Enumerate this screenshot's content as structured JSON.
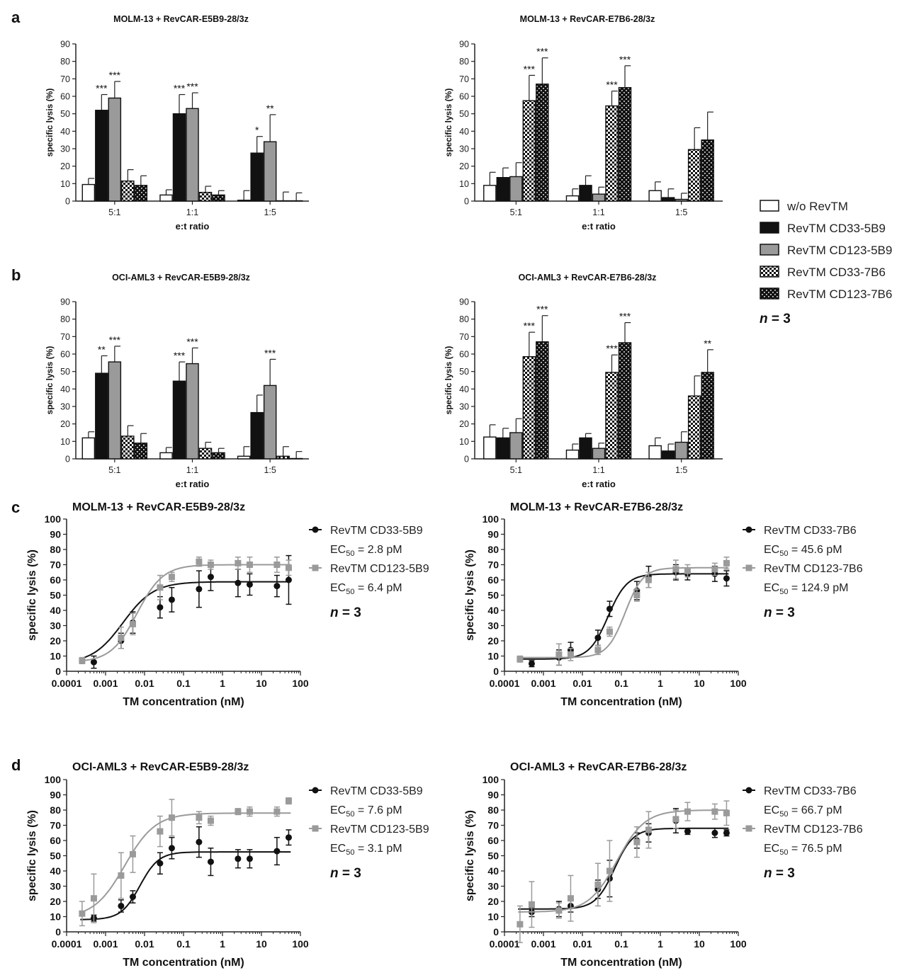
{
  "panel_letters": [
    "a",
    "b",
    "c",
    "d"
  ],
  "legend": {
    "entries": [
      {
        "label": "w/o RevTM",
        "pattern": "white"
      },
      {
        "label": "RevTM CD33-5B9",
        "pattern": "black"
      },
      {
        "label": "RevTM CD123-5B9",
        "pattern": "gray"
      },
      {
        "label": "RevTM CD33-7B6",
        "pattern": "check-light"
      },
      {
        "label": "RevTM CD123-7B6",
        "pattern": "check-dark"
      }
    ],
    "n_prefix": "n",
    "n_suffix": " = 3"
  },
  "colors": {
    "black": "#111111",
    "gray": "#9a9a9a",
    "gray_dark": "#7f7f7f",
    "axis": "#222222"
  },
  "chart_data": [
    {
      "type": "bar",
      "panel": "a",
      "title": "MOLM-13 + RevCAR-E5B9-28/3z",
      "categories": [
        "5:1",
        "1:1",
        "1:5"
      ],
      "xlabel": "e:t ratio",
      "ylabel": "specific lysis (%)",
      "ylim": [
        0,
        90
      ],
      "yticks": [
        0,
        10,
        20,
        30,
        40,
        50,
        60,
        70,
        80,
        90
      ],
      "series": [
        {
          "name": "w/o RevTM",
          "pattern": "white",
          "values": [
            9.5,
            3.5,
            0.5
          ],
          "errors": [
            3.5,
            3,
            5.5
          ],
          "sig": [
            "",
            "",
            ""
          ]
        },
        {
          "name": "RevTM CD33-5B9",
          "pattern": "black",
          "values": [
            52,
            50,
            27.5
          ],
          "errors": [
            9,
            11,
            9.5
          ],
          "sig": [
            "***",
            "***",
            "*"
          ]
        },
        {
          "name": "RevTM CD123-5B9",
          "pattern": "gray",
          "values": [
            59,
            53,
            34
          ],
          "errors": [
            9.5,
            9,
            15.5
          ],
          "sig": [
            "***",
            "***",
            "**"
          ]
        },
        {
          "name": "RevTM CD33-7B6",
          "pattern": "check-light",
          "values": [
            11.5,
            5,
            0.2
          ],
          "errors": [
            6.5,
            3.5,
            5
          ],
          "sig": [
            "",
            "",
            ""
          ]
        },
        {
          "name": "RevTM CD123-7B6",
          "pattern": "check-dark",
          "values": [
            9,
            3.5,
            0.2
          ],
          "errors": [
            5.5,
            2.5,
            4.5
          ],
          "sig": [
            "",
            "",
            ""
          ]
        }
      ]
    },
    {
      "type": "bar",
      "panel": "a",
      "title": "MOLM-13 + RevCAR-E7B6-28/3z",
      "categories": [
        "5:1",
        "1:1",
        "1:5"
      ],
      "xlabel": "e:t ratio",
      "ylabel": "specific lysis (%)",
      "ylim": [
        0,
        90
      ],
      "yticks": [
        0,
        10,
        20,
        30,
        40,
        50,
        60,
        70,
        80,
        90
      ],
      "series": [
        {
          "name": "w/o RevTM",
          "pattern": "white",
          "values": [
            9,
            3,
            6
          ],
          "errors": [
            7.5,
            4,
            5
          ],
          "sig": [
            "",
            "",
            ""
          ]
        },
        {
          "name": "RevTM CD33-5B9",
          "pattern": "black",
          "values": [
            13.5,
            9,
            2
          ],
          "errors": [
            5.5,
            5.5,
            5
          ],
          "sig": [
            "",
            "",
            ""
          ]
        },
        {
          "name": "RevTM CD123-5B9",
          "pattern": "gray",
          "values": [
            14,
            4,
            1
          ],
          "errors": [
            8,
            4,
            3.5
          ],
          "sig": [
            "",
            "",
            ""
          ]
        },
        {
          "name": "RevTM CD33-7B6",
          "pattern": "check-light",
          "values": [
            57.5,
            54.5,
            29.5
          ],
          "errors": [
            14.5,
            8.5,
            12.5
          ],
          "sig": [
            "***",
            "***",
            ""
          ]
        },
        {
          "name": "RevTM CD123-7B6",
          "pattern": "check-dark",
          "values": [
            67,
            65,
            35
          ],
          "errors": [
            15,
            12.5,
            16
          ],
          "sig": [
            "***",
            "***",
            ""
          ]
        }
      ]
    },
    {
      "type": "bar",
      "panel": "b",
      "title": "OCI-AML3 + RevCAR-E5B9-28/3z",
      "categories": [
        "5:1",
        "1:1",
        "1:5"
      ],
      "xlabel": "e:t ratio",
      "ylabel": "specific lysis (%)",
      "ylim": [
        0,
        90
      ],
      "yticks": [
        0,
        10,
        20,
        30,
        40,
        50,
        60,
        70,
        80,
        90
      ],
      "series": [
        {
          "name": "w/o RevTM",
          "pattern": "white",
          "values": [
            12,
            3.5,
            1.5
          ],
          "errors": [
            3.5,
            3,
            5.5
          ],
          "sig": [
            "",
            "",
            ""
          ]
        },
        {
          "name": "RevTM CD33-5B9",
          "pattern": "black",
          "values": [
            49,
            44.5,
            26.5
          ],
          "errors": [
            10,
            11,
            10
          ],
          "sig": [
            "**",
            "***",
            ""
          ]
        },
        {
          "name": "RevTM CD123-5B9",
          "pattern": "gray",
          "values": [
            55.5,
            54.5,
            42
          ],
          "errors": [
            9,
            9,
            15
          ],
          "sig": [
            "***",
            "***",
            "***"
          ]
        },
        {
          "name": "RevTM CD33-7B6",
          "pattern": "check-light",
          "values": [
            13,
            6,
            1.5
          ],
          "errors": [
            6,
            3.5,
            5.5
          ],
          "sig": [
            "",
            "",
            ""
          ]
        },
        {
          "name": "RevTM CD123-7B6",
          "pattern": "check-dark",
          "values": [
            9,
            3.5,
            0.2
          ],
          "errors": [
            5.5,
            2.5,
            4
          ],
          "sig": [
            "",
            "",
            ""
          ]
        }
      ]
    },
    {
      "type": "bar",
      "panel": "b",
      "title": "OCI-AML3 + RevCAR-E7B6-28/3z",
      "categories": [
        "5:1",
        "1:1",
        "1:5"
      ],
      "xlabel": "e:t ratio",
      "ylabel": "specific lysis (%)",
      "ylim": [
        0,
        90
      ],
      "yticks": [
        0,
        10,
        20,
        30,
        40,
        50,
        60,
        70,
        80,
        90
      ],
      "series": [
        {
          "name": "w/o RevTM",
          "pattern": "white",
          "values": [
            12.5,
            5,
            7.5
          ],
          "errors": [
            7,
            3.5,
            4.5
          ],
          "sig": [
            "",
            "",
            ""
          ]
        },
        {
          "name": "RevTM CD33-5B9",
          "pattern": "black",
          "values": [
            12,
            12,
            4.5
          ],
          "errors": [
            5.5,
            2.5,
            4
          ],
          "sig": [
            "",
            "",
            ""
          ]
        },
        {
          "name": "RevTM CD123-5B9",
          "pattern": "gray",
          "values": [
            15,
            6,
            9.5
          ],
          "errors": [
            8,
            3,
            6
          ],
          "sig": [
            "",
            "",
            ""
          ]
        },
        {
          "name": "RevTM CD33-7B6",
          "pattern": "check-light",
          "values": [
            58.5,
            49.5,
            36
          ],
          "errors": [
            14,
            10,
            11.5
          ],
          "sig": [
            "***",
            "***",
            ""
          ]
        },
        {
          "name": "RevTM CD123-7B6",
          "pattern": "check-dark",
          "values": [
            67,
            66.5,
            49.5
          ],
          "errors": [
            15,
            11.5,
            13
          ],
          "sig": [
            "***",
            "***",
            "**"
          ]
        }
      ]
    },
    {
      "type": "scatter",
      "panel": "c",
      "title": "MOLM-13 + RevCAR-E5B9-28/3z",
      "xlabel": "TM concentration (nM)",
      "ylabel": "specific lysis (%)",
      "xscale": "log",
      "xlim": [
        0.0001,
        100
      ],
      "xticks": [
        "0.0001",
        "0.001",
        "0.01",
        "0.1",
        "1",
        "10",
        "100"
      ],
      "ylim": [
        0,
        100
      ],
      "yticks": [
        0,
        10,
        20,
        30,
        40,
        50,
        60,
        70,
        80,
        90,
        100
      ],
      "ec50_prefix": "EC",
      "ec50_sub": "50",
      "series": [
        {
          "name": "RevTM CD33-5B9",
          "color": "#111111",
          "marker": "circle",
          "ec50": " = 2.8 pM",
          "x": [
            0.0005,
            0.0025,
            0.005,
            0.025,
            0.05,
            0.25,
            0.5,
            2.5,
            5,
            25,
            50
          ],
          "y": [
            6,
            20,
            32,
            42,
            47,
            54,
            62,
            58,
            57,
            56,
            60
          ],
          "err": [
            4,
            5,
            7,
            7,
            8,
            12,
            9,
            9,
            7,
            7,
            16
          ],
          "fit": {
            "bottom": 5,
            "top": 58.8,
            "ec50": 0.0028,
            "hill": 1.1
          }
        },
        {
          "name": "RevTM CD123-5B9",
          "color": "#9a9a9a",
          "marker": "square",
          "ec50": " = 6.4 pM",
          "x": [
            0.00025,
            0.0025,
            0.005,
            0.025,
            0.05,
            0.25,
            0.5,
            2.5,
            5,
            25,
            50
          ],
          "y": [
            7,
            22,
            31,
            55,
            62,
            72,
            70,
            71,
            70,
            70,
            68
          ],
          "err": [
            2,
            7,
            7,
            8,
            3,
            3,
            3,
            4,
            5,
            5,
            5
          ],
          "fit": {
            "bottom": 6,
            "top": 70,
            "ec50": 0.0064,
            "hill": 1.3
          }
        }
      ]
    },
    {
      "type": "scatter",
      "panel": "c",
      "title": "MOLM-13 + RevCAR-E7B6-28/3z",
      "xlabel": "TM concentration (nM)",
      "ylabel": "specific lysis (%)",
      "xscale": "log",
      "xlim": [
        0.0001,
        100
      ],
      "xticks": [
        "0.0001",
        "0.001",
        "0.01",
        "0.1",
        "1",
        "10",
        "100"
      ],
      "ylim": [
        0,
        100
      ],
      "yticks": [
        0,
        10,
        20,
        30,
        40,
        50,
        60,
        70,
        80,
        90,
        100
      ],
      "ec50_prefix": "EC",
      "ec50_sub": "50",
      "series": [
        {
          "name": "RevTM CD33-7B6",
          "color": "#111111",
          "marker": "circle",
          "ec50": " = 45.6 pM",
          "x": [
            0.0005,
            0.0025,
            0.005,
            0.025,
            0.05,
            0.25,
            0.5,
            2.5,
            5,
            25,
            50
          ],
          "y": [
            5,
            9,
            14,
            22,
            41,
            53,
            62,
            65,
            64,
            64,
            61
          ],
          "err": [
            2,
            5,
            5,
            5,
            5,
            6,
            7,
            5,
            4,
            5,
            5
          ],
          "fit": {
            "bottom": 8,
            "top": 64,
            "ec50": 0.0456,
            "hill": 1.8
          }
        },
        {
          "name": "RevTM CD123-7B6",
          "color": "#9a9a9a",
          "marker": "square",
          "ec50": " = 124.9 pM",
          "x": [
            0.00025,
            0.0025,
            0.005,
            0.025,
            0.05,
            0.25,
            0.5,
            2.5,
            5,
            25,
            50
          ],
          "y": [
            8,
            11,
            11,
            14,
            26,
            50,
            60,
            67,
            66,
            67,
            71
          ],
          "err": [
            2,
            7,
            4,
            3,
            3,
            4,
            5,
            6,
            4,
            4,
            4
          ],
          "fit": {
            "bottom": 9,
            "top": 68,
            "ec50": 0.1249,
            "hill": 1.9
          }
        }
      ]
    },
    {
      "type": "scatter",
      "panel": "d",
      "title": "OCI-AML3 + RevCAR-E5B9-28/3z",
      "xlabel": "TM concentration (nM)",
      "ylabel": "specific lysis (%)",
      "xscale": "log",
      "xlim": [
        0.0001,
        100
      ],
      "xticks": [
        "0.0001",
        "0.001",
        "0.01",
        "0.1",
        "1",
        "10",
        "100"
      ],
      "ylim": [
        0,
        100
      ],
      "yticks": [
        0,
        10,
        20,
        30,
        40,
        50,
        60,
        70,
        80,
        90,
        100
      ],
      "ec50_prefix": "EC",
      "ec50_sub": "50",
      "series": [
        {
          "name": "RevTM CD33-5B9",
          "color": "#111111",
          "marker": "circle",
          "ec50": " = 7.6 pM",
          "x": [
            0.0005,
            0.0025,
            0.005,
            0.025,
            0.05,
            0.25,
            0.5,
            2.5,
            5,
            25,
            50
          ],
          "y": [
            9,
            17,
            23,
            45,
            55,
            59,
            46,
            48,
            48,
            53,
            62
          ],
          "err": [
            2,
            4,
            4,
            7,
            7,
            10,
            9,
            6,
            6,
            9,
            5
          ],
          "fit": {
            "bottom": 8,
            "top": 52.5,
            "ec50": 0.0076,
            "hill": 1.8
          }
        },
        {
          "name": "RevTM CD123-5B9",
          "color": "#9a9a9a",
          "marker": "square",
          "ec50": " = 3.1 pM",
          "x": [
            0.00025,
            0.0005,
            0.0025,
            0.005,
            0.025,
            0.05,
            0.25,
            0.5,
            2.5,
            5,
            25,
            50
          ],
          "y": [
            12,
            22,
            37,
            51,
            66,
            75,
            75,
            73,
            79,
            79,
            79,
            86
          ],
          "err": [
            8,
            16,
            15,
            12,
            10,
            12,
            4,
            3,
            2,
            3,
            3,
            2
          ],
          "fit": {
            "bottom": 9,
            "top": 78,
            "ec50": 0.0031,
            "hill": 1.1
          }
        }
      ]
    },
    {
      "type": "scatter",
      "panel": "d",
      "title": "OCI-AML3 + RevCAR-E7B6-28/3z",
      "xlabel": "TM concentration (nM)",
      "ylabel": "specific lysis (%)",
      "xscale": "log",
      "xlim": [
        0.0001,
        100
      ],
      "xticks": [
        "0.0001",
        "0.001",
        "0.01",
        "0.1",
        "1",
        "10",
        "100"
      ],
      "ylim": [
        0,
        100
      ],
      "yticks": [
        0,
        10,
        20,
        30,
        40,
        50,
        60,
        70,
        80,
        90,
        100
      ],
      "ec50_prefix": "EC",
      "ec50_sub": "50",
      "series": [
        {
          "name": "RevTM CD33-7B6",
          "color": "#111111",
          "marker": "circle",
          "ec50": " = 66.7 pM",
          "x": [
            0.0005,
            0.0025,
            0.005,
            0.025,
            0.05,
            0.25,
            0.5,
            2.5,
            5,
            25,
            50
          ],
          "y": [
            13,
            15,
            17,
            28,
            35,
            60,
            65,
            73,
            66,
            65,
            65
          ],
          "err": [
            3,
            5,
            4,
            6,
            12,
            5,
            6,
            8,
            2,
            3,
            2
          ],
          "fit": {
            "bottom": 15,
            "top": 68,
            "ec50": 0.0667,
            "hill": 1.8
          }
        },
        {
          "name": "RevTM CD123-7B6",
          "color": "#9a9a9a",
          "marker": "square",
          "ec50": " = 76.5 pM",
          "x": [
            0.00025,
            0.0005,
            0.0025,
            0.005,
            0.025,
            0.05,
            0.25,
            0.5,
            2.5,
            5,
            25,
            50
          ],
          "y": [
            5,
            18,
            14,
            22,
            31,
            40,
            59,
            67,
            74,
            79,
            79,
            78
          ],
          "err": [
            12,
            15,
            5,
            15,
            14,
            20,
            10,
            12,
            6,
            6,
            5,
            8
          ],
          "fit": {
            "bottom": 13,
            "top": 80,
            "ec50": 0.0765,
            "hill": 1.2
          }
        }
      ]
    }
  ]
}
